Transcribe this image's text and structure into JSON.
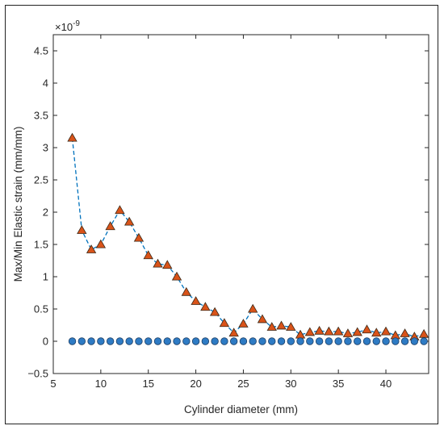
{
  "chart_data": {
    "type": "scatter",
    "xlabel": "Cylinder diameter (mm)",
    "ylabel": "Max/Min Elastic strain (mm/mm)",
    "y_exponent_label": "×10",
    "y_exponent": "-9",
    "xlim": [
      5,
      44.5
    ],
    "ylim": [
      -0.5,
      4.75
    ],
    "xticks": [
      5,
      10,
      15,
      20,
      25,
      30,
      35,
      40
    ],
    "yticks": [
      -0.5,
      0,
      0.5,
      1,
      1.5,
      2,
      2.5,
      3,
      3.5,
      4,
      4.5
    ],
    "ytick_labels": [
      "−0.5",
      "0",
      "0.5",
      "1",
      "1.5",
      "2",
      "2.5",
      "3",
      "3.5",
      "4",
      "4.5"
    ],
    "grid": false,
    "series": [
      {
        "marker": "triangle",
        "color": "#d95319",
        "line": "dashed",
        "line_color": "#0072bd",
        "x": [
          7,
          8,
          9,
          10,
          11,
          12,
          13,
          14,
          15,
          16,
          17,
          18,
          19,
          20,
          21,
          22,
          23,
          24,
          25,
          26,
          27,
          28,
          29,
          30,
          31,
          32,
          33,
          34,
          35,
          36,
          37,
          38,
          39,
          40,
          41,
          42,
          43,
          44
        ],
        "values": [
          3.15,
          1.72,
          1.42,
          1.5,
          1.78,
          2.03,
          1.85,
          1.6,
          1.33,
          1.2,
          1.18,
          1.0,
          0.76,
          0.62,
          0.53,
          0.45,
          0.28,
          0.13,
          0.27,
          0.5,
          0.34,
          0.22,
          0.24,
          0.22,
          0.1,
          0.14,
          0.16,
          0.15,
          0.15,
          0.12,
          0.14,
          0.18,
          0.13,
          0.15,
          0.09,
          0.12,
          0.07,
          0.11
        ]
      },
      {
        "marker": "circle",
        "color": "#2e7bc4",
        "line": "none",
        "x": [
          7,
          8,
          9,
          10,
          11,
          12,
          13,
          14,
          15,
          16,
          17,
          18,
          19,
          20,
          21,
          22,
          23,
          24,
          25,
          26,
          27,
          28,
          29,
          30,
          31,
          32,
          33,
          34,
          35,
          36,
          37,
          38,
          39,
          40,
          41,
          42,
          43,
          44
        ],
        "values": [
          0,
          0,
          0,
          0,
          0,
          0,
          0,
          0,
          0,
          0,
          0,
          0,
          0,
          0,
          0,
          0,
          0,
          0,
          0,
          0,
          0,
          0,
          0,
          0,
          0,
          0,
          0,
          0,
          0,
          0,
          0,
          0,
          0,
          0,
          0,
          0,
          0,
          0
        ]
      }
    ]
  }
}
